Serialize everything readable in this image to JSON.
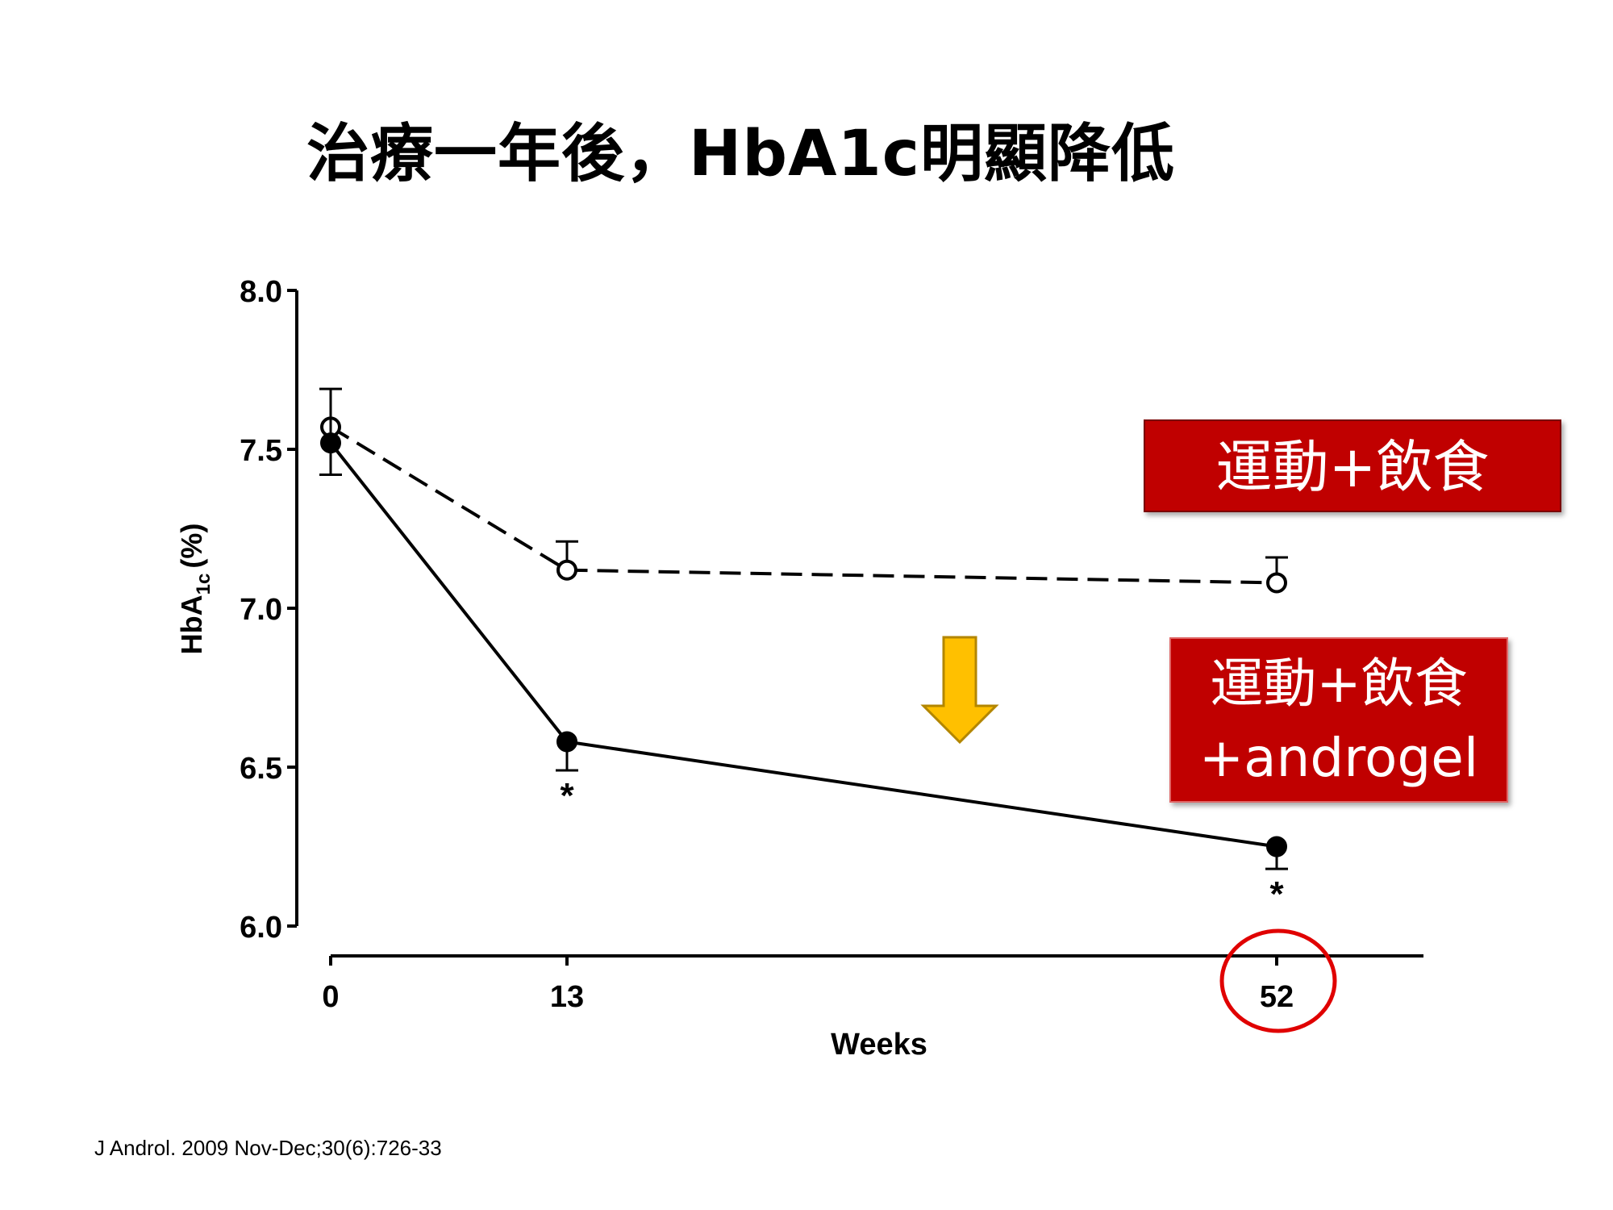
{
  "title": "治療一年後，HbA1c明顯降低",
  "labels": {
    "control": "運動+飲食",
    "androgel_line1": "運動+飲食",
    "androgel_line2": "+androgel"
  },
  "citation": "J Androl. 2009 Nov-Dec;30(6):726-33",
  "colors": {
    "label_box": "#c00000",
    "arrow": "#ffc000",
    "highlight_circle": "#e00000"
  },
  "chart_data": {
    "type": "line",
    "x": [
      0,
      13,
      52
    ],
    "x_tick_labels": [
      "0",
      "13",
      "52"
    ],
    "xlabel": "Weeks",
    "ylabel": "HbA1c (%)",
    "ylabel_main": "HbA",
    "ylabel_sub": "1c",
    "ylabel_unit": "(%)",
    "ylim": [
      6.0,
      8.0
    ],
    "y_ticks": [
      6.0,
      6.5,
      7.0,
      7.5,
      8.0
    ],
    "y_tick_labels": [
      "6.0",
      "6.5",
      "7.0",
      "7.5",
      "8.0"
    ],
    "series": [
      {
        "style": "dashed",
        "marker": "open-circle",
        "values": [
          7.57,
          7.12,
          7.08
        ],
        "error": [
          0.12,
          0.09,
          0.08
        ],
        "error_direction": "up"
      },
      {
        "style": "solid",
        "marker": "filled-circle",
        "values": [
          7.52,
          6.58,
          6.25
        ],
        "error": [
          0.1,
          0.09,
          0.07
        ],
        "error_direction": "down",
        "significance": [
          "",
          "*",
          "*"
        ]
      }
    ],
    "grid": false,
    "highlight": "x=52 circled"
  }
}
